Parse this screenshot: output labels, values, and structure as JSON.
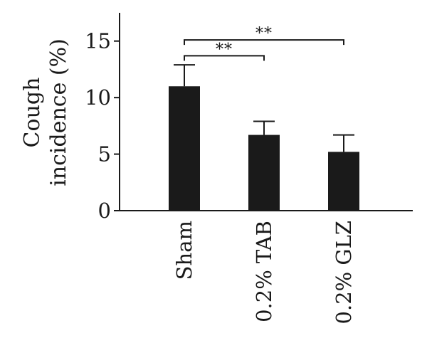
{
  "chart_data": {
    "type": "bar",
    "title": "",
    "ylabel_lines": [
      "Cough",
      "incidence (%)"
    ],
    "xlabel": "",
    "ylim": [
      0,
      17.5
    ],
    "yticks": [
      0,
      5,
      10,
      15
    ],
    "categories": [
      "Sham",
      "0.2% TAB",
      "0.2% GLZ"
    ],
    "values": [
      11.0,
      6.7,
      5.2
    ],
    "errors": [
      1.9,
      1.2,
      1.5
    ],
    "significance": [
      {
        "from": 0,
        "to": 1,
        "y": 13.7,
        "label": "**"
      },
      {
        "from": 0,
        "to": 2,
        "y": 15.1,
        "label": "**"
      }
    ],
    "bar_color": "#1a1a1a",
    "grid": false,
    "legend": "none"
  }
}
